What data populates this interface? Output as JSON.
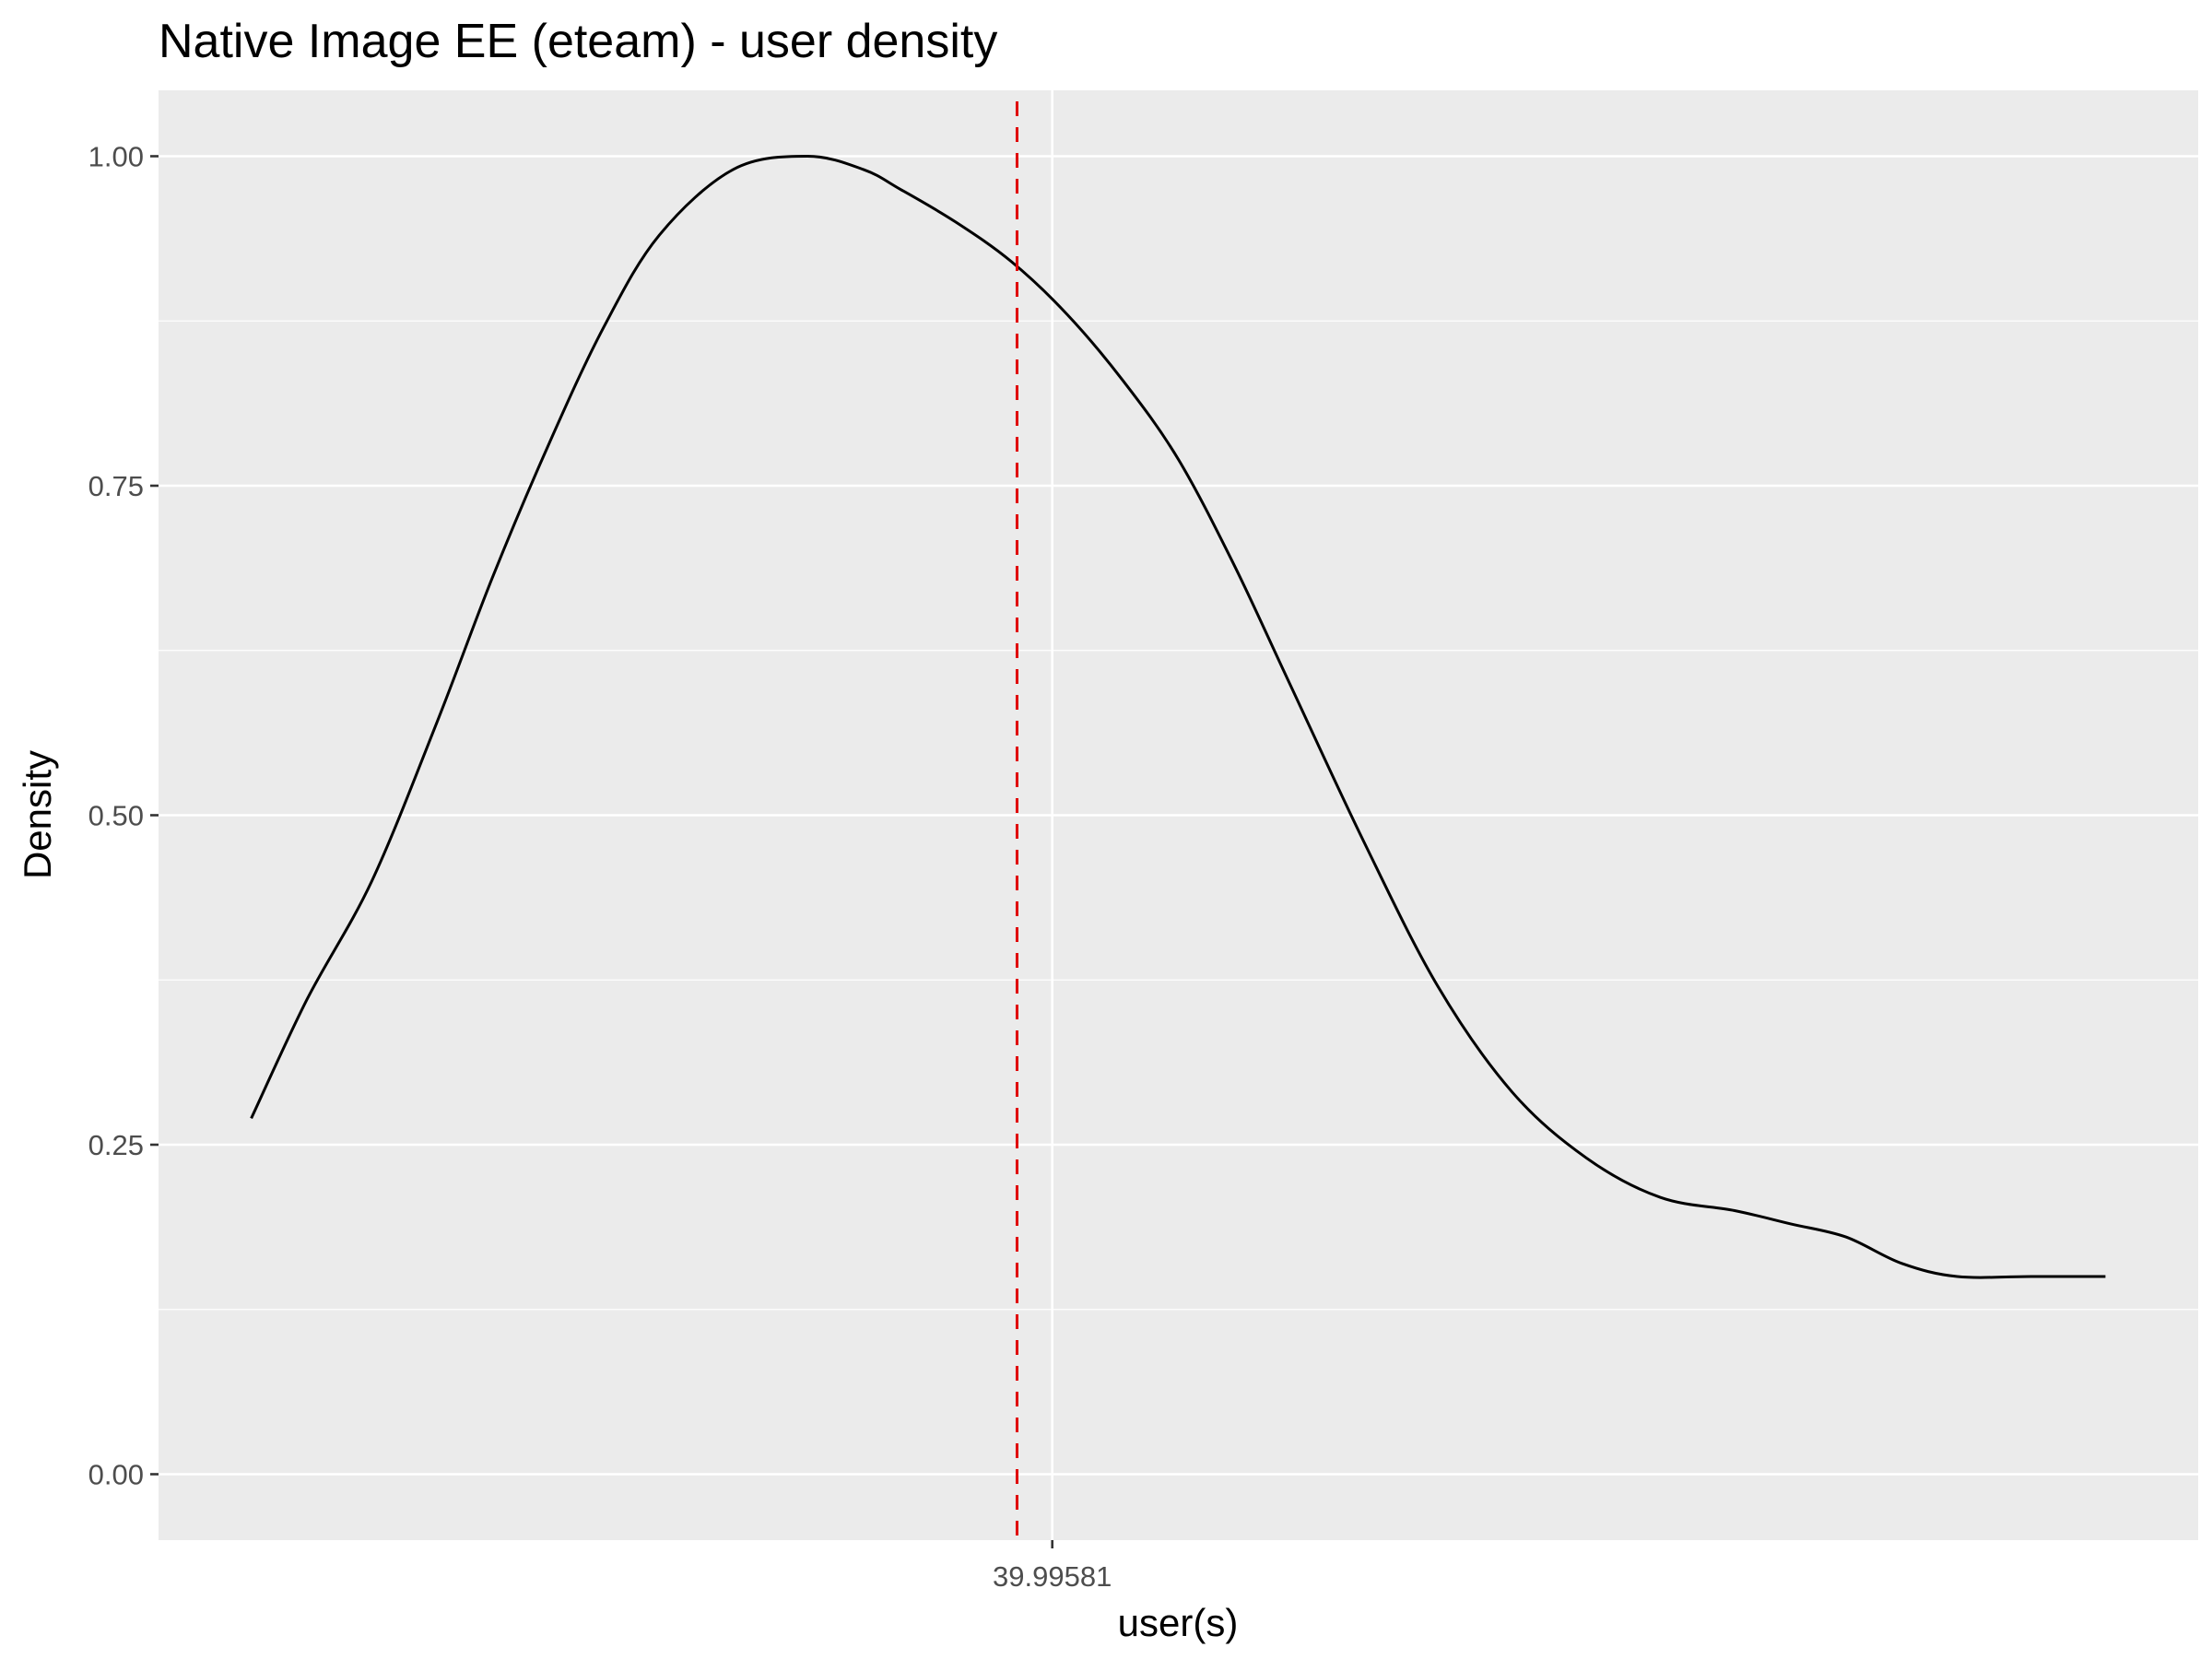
{
  "chart_data": {
    "type": "line",
    "title": "Native Image EE (eteam) - user density",
    "xlabel": "user(s)",
    "ylabel": "Density",
    "x_tick_labels": [
      "39.99581"
    ],
    "y_ticks": [
      0.0,
      0.25,
      0.5,
      0.75,
      1.0
    ],
    "y_tick_labels": [
      "0.00",
      "0.25",
      "0.50",
      "0.75",
      "1.00"
    ],
    "ylim": [
      -0.05,
      1.05
    ],
    "x_axis_normalized": true,
    "xlim": [
      -0.05,
      1.05
    ],
    "series": [
      {
        "color": "#000000",
        "x": [
          0.0,
          0.03,
          0.065,
          0.1,
          0.13,
          0.16,
          0.19,
          0.22,
          0.26,
          0.3,
          0.33,
          0.35,
          0.38,
          0.41,
          0.44,
          0.47,
          0.5,
          0.53,
          0.56,
          0.6,
          0.64,
          0.68,
          0.72,
          0.76,
          0.8,
          0.83,
          0.86,
          0.89,
          0.92,
          0.96,
          1.0
        ],
        "values": [
          0.27,
          0.36,
          0.45,
          0.57,
          0.68,
          0.78,
          0.87,
          0.94,
          0.99,
          1.0,
          0.99,
          0.975,
          0.95,
          0.92,
          0.88,
          0.83,
          0.77,
          0.69,
          0.6,
          0.48,
          0.37,
          0.29,
          0.24,
          0.21,
          0.2,
          0.19,
          0.18,
          0.16,
          0.15,
          0.15,
          0.15
        ]
      }
    ],
    "mean_line": {
      "x": 0.413,
      "color": "#e00000",
      "style": "dashed"
    },
    "x_tick_positions": [
      0.432
    ],
    "colors": {
      "panel_background": "#ebebeb",
      "grid": "#ffffff",
      "line": "#000000",
      "mean_line": "#e00000"
    },
    "grid": true,
    "legend": "none"
  }
}
